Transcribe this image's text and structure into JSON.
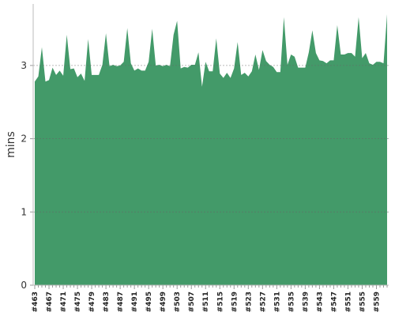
{
  "chart_data": {
    "type": "area",
    "y_label": "mins",
    "color": "#439a69",
    "categories": [
      "#463",
      null,
      null,
      null,
      "#467",
      null,
      null,
      null,
      "#471",
      null,
      null,
      null,
      "#475",
      null,
      null,
      null,
      "#479",
      null,
      null,
      null,
      "#483",
      null,
      null,
      null,
      "#487",
      null,
      null,
      null,
      "#491",
      null,
      null,
      null,
      "#495",
      null,
      null,
      null,
      "#499",
      null,
      null,
      null,
      "#503",
      null,
      null,
      null,
      "#507",
      null,
      null,
      null,
      "#511",
      null,
      null,
      null,
      "#515",
      null,
      null,
      null,
      "#519",
      null,
      null,
      null,
      "#523",
      null,
      null,
      null,
      "#527",
      null,
      null,
      null,
      "#531",
      null,
      null,
      null,
      "#535",
      null,
      null,
      null,
      "#539",
      null,
      null,
      null,
      "#543",
      null,
      null,
      null,
      "#547",
      null,
      null,
      null,
      "#551",
      null,
      null,
      null,
      "#555",
      null,
      null,
      null,
      "#559",
      null,
      null,
      null
    ],
    "values": [
      2.78,
      2.85,
      3.25,
      2.78,
      2.8,
      2.97,
      2.87,
      2.93,
      2.86,
      3.42,
      2.95,
      2.96,
      2.84,
      2.89,
      2.79,
      3.36,
      2.87,
      2.87,
      2.87,
      3.01,
      3.44,
      2.99,
      3.01,
      2.99,
      3.0,
      3.05,
      3.51,
      3.03,
      2.93,
      2.96,
      2.93,
      2.93,
      3.05,
      3.5,
      3.0,
      3.01,
      2.99,
      3.01,
      2.99,
      3.42,
      3.61,
      2.96,
      2.98,
      2.97,
      3.01,
      3.01,
      3.18,
      2.71,
      3.05,
      2.92,
      2.92,
      3.37,
      2.89,
      2.83,
      2.9,
      2.83,
      2.96,
      3.32,
      2.87,
      2.9,
      2.85,
      2.92,
      3.15,
      2.94,
      3.21,
      3.06,
      3.01,
      2.98,
      2.91,
      2.91,
      3.66,
      3.01,
      3.15,
      3.12,
      2.97,
      2.97,
      2.97,
      3.18,
      3.48,
      3.17,
      3.07,
      3.06,
      3.03,
      3.07,
      3.07,
      3.55,
      3.15,
      3.15,
      3.17,
      3.17,
      3.12,
      3.66,
      3.1,
      3.17,
      3.03,
      3.01,
      3.05,
      3.05,
      3.03,
      3.7
    ],
    "ylim": [
      0,
      3.84
    ],
    "yticks": [
      0,
      1,
      2,
      3
    ],
    "grid": true
  }
}
